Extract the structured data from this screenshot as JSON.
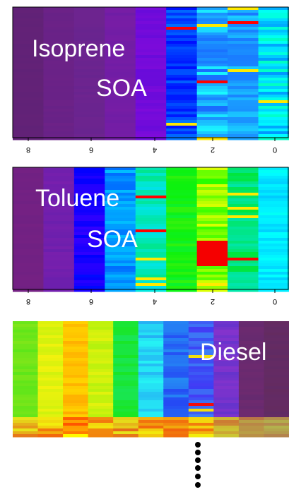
{
  "panels": [
    {
      "label_line1": "Isoprene",
      "label_line2": "SOA",
      "ticks": [
        "8",
        "6",
        "4",
        "2",
        "0"
      ]
    },
    {
      "label_line1": "Toluene",
      "label_line2": "SOA",
      "ticks": [
        "8",
        "6",
        "4",
        "2",
        "0"
      ]
    },
    {
      "label_line1": "Diesel"
    }
  ]
}
